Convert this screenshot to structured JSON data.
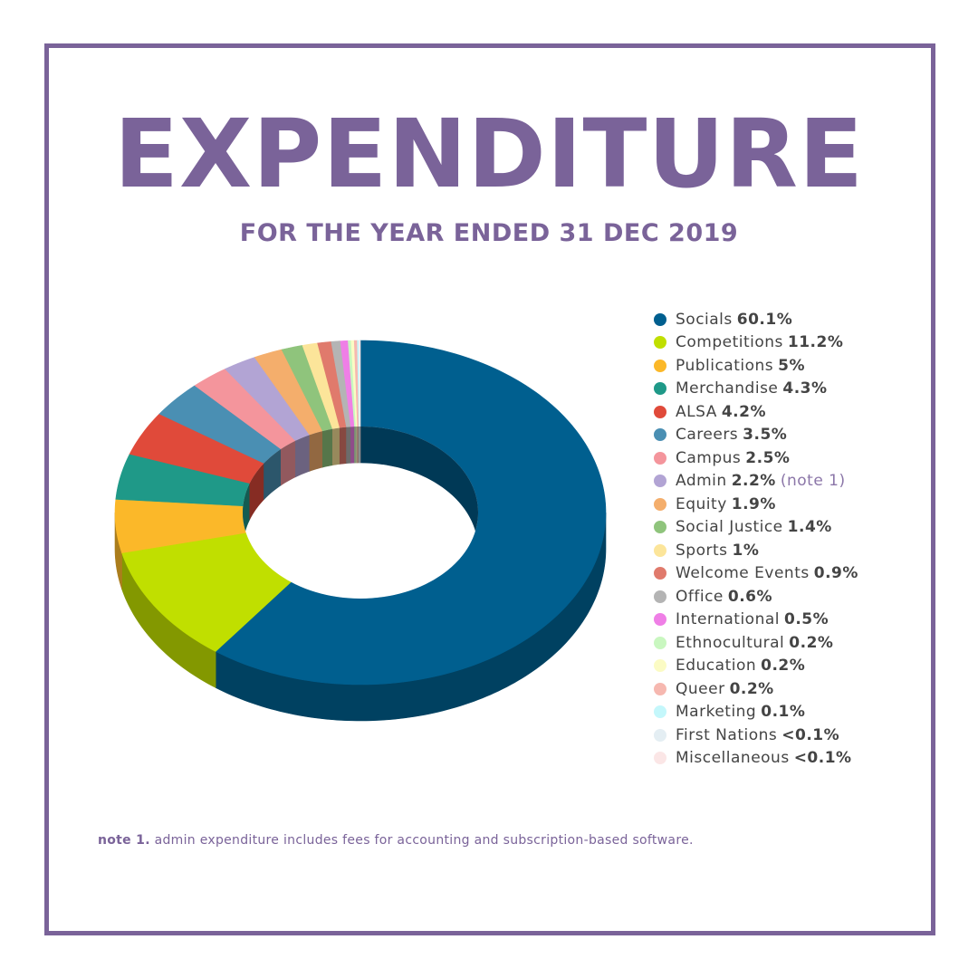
{
  "header": {
    "title": "EXPENDITURE",
    "subtitle": "FOR THE YEAR ENDED 31 DEC 2019"
  },
  "chart_data": {
    "type": "pie",
    "style": "3d-donut",
    "legend_placement": "right",
    "categories": [
      "Socials",
      "Competitions",
      "Publications",
      "Merchandise",
      "ALSA",
      "Careers",
      "Campus",
      "Admin",
      "Equity",
      "Social Justice",
      "Sports",
      "Welcome Events",
      "Office",
      "International",
      "Ethnocultural",
      "Education",
      "Queer",
      "Marketing",
      "First Nations",
      "Miscellaneous"
    ],
    "values": [
      60.1,
      11.2,
      5,
      4.3,
      4.2,
      3.5,
      2.5,
      2.2,
      1.9,
      1.4,
      1,
      0.9,
      0.6,
      0.5,
      0.2,
      0.2,
      0.2,
      0.1,
      0.05,
      0.05
    ],
    "value_labels": [
      "60.1%",
      "11.2%",
      "5%",
      "4.3%",
      "4.2%",
      "3.5%",
      "2.5%",
      "2.2%",
      "1.9%",
      "1.4%",
      "1%",
      "0.9%",
      "0.6%",
      "0.5%",
      "0.2%",
      "0.2%",
      "0.2%",
      "0.1%",
      "<0.1%",
      "<0.1%"
    ],
    "notes": [
      "",
      "",
      "",
      "",
      "",
      "",
      "",
      "(note 1)",
      "",
      "",
      "",
      "",
      "",
      "",
      "",
      "",
      "",
      "",
      "",
      ""
    ],
    "colors": [
      "#005f8f",
      "#c0df00",
      "#fbb829",
      "#1f9988",
      "#e04a3a",
      "#4a8fb3",
      "#f4959c",
      "#b2a4d4",
      "#f4ae6c",
      "#8fc47c",
      "#fce59a",
      "#e07a6c",
      "#b4b4b4",
      "#ef7fe6",
      "#c9f7c0",
      "#fbfbc4",
      "#f6b8b0",
      "#c4f7fb",
      "#e4eef3",
      "#fbe6e6"
    ]
  },
  "footnote": {
    "label": "note 1.",
    "text": "admin expenditure includes fees for accounting and subscription-based software."
  }
}
